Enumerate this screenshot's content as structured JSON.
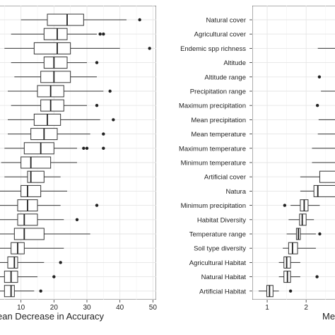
{
  "chart_data": [
    {
      "type": "boxplot",
      "xlabel": "ean Decrease in Accuracy",
      "xticks": [
        10,
        20,
        30,
        40,
        50
      ],
      "xlim": [
        3,
        51
      ],
      "grid": true,
      "y_labels_visible": false,
      "boxes": [
        {
          "lo": 10,
          "q1": 18,
          "med": 24,
          "q3": 29,
          "hi": 42,
          "out": [
            46
          ]
        },
        {
          "lo": 7,
          "q1": 17,
          "med": 21,
          "q3": 24,
          "hi": 33,
          "out": [
            34,
            35
          ]
        },
        {
          "lo": 5,
          "q1": 14,
          "med": 21,
          "q3": 25,
          "hi": 40,
          "out": [
            49
          ]
        },
        {
          "lo": 7,
          "q1": 17,
          "med": 20,
          "q3": 24,
          "hi": 30,
          "out": [
            33
          ]
        },
        {
          "lo": 8,
          "q1": 16,
          "med": 20,
          "q3": 25,
          "hi": 33,
          "out": []
        },
        {
          "lo": 6,
          "q1": 15,
          "med": 19,
          "q3": 23,
          "hi": 35,
          "out": [
            37
          ]
        },
        {
          "lo": 7,
          "q1": 16,
          "med": 19,
          "q3": 23,
          "hi": 30,
          "out": [
            33
          ]
        },
        {
          "lo": 6,
          "q1": 14,
          "med": 18,
          "q3": 22,
          "hi": 34,
          "out": [
            38
          ]
        },
        {
          "lo": 6,
          "q1": 13,
          "med": 17,
          "q3": 21,
          "hi": 31,
          "out": [
            35
          ]
        },
        {
          "lo": 5,
          "q1": 11,
          "med": 16,
          "q3": 20,
          "hi": 27,
          "out": [
            29,
            30,
            35
          ]
        },
        {
          "lo": 4,
          "q1": 10,
          "med": 13,
          "q3": 19,
          "hi": 27,
          "out": []
        },
        {
          "lo": 5,
          "q1": 12,
          "med": 13,
          "q3": 17,
          "hi": 22,
          "out": []
        },
        {
          "lo": 3,
          "q1": 10,
          "med": 12,
          "q3": 16,
          "hi": 24,
          "out": []
        },
        {
          "lo": 3,
          "q1": 9,
          "med": 12,
          "q3": 15,
          "hi": 22,
          "out": [
            33
          ]
        },
        {
          "lo": 3,
          "q1": 9,
          "med": 11,
          "q3": 15,
          "hi": 23,
          "out": [
            27
          ]
        },
        {
          "lo": 3,
          "q1": 8,
          "med": 11,
          "q3": 17,
          "hi": 31,
          "out": []
        },
        {
          "lo": 3,
          "q1": 7,
          "med": 9,
          "q3": 11,
          "hi": 23,
          "out": []
        },
        {
          "lo": 3,
          "q1": 6,
          "med": 8,
          "q3": 9,
          "hi": 17,
          "out": [
            22
          ]
        },
        {
          "lo": 3,
          "q1": 5,
          "med": 7,
          "q3": 9,
          "hi": 15,
          "out": [
            20
          ]
        },
        {
          "lo": 3,
          "q1": 5,
          "med": 7,
          "q3": 8,
          "hi": 14,
          "out": [
            16
          ]
        }
      ]
    },
    {
      "type": "boxplot",
      "xlabel": "Mea",
      "xticks": [
        1,
        2
      ],
      "xlim": [
        0.6,
        2.85
      ],
      "grid": true,
      "categories": [
        "Natural cover",
        "Agricultural cover",
        "Endemic spp richness",
        "Altitude",
        "Altitude range",
        "Precipitation range",
        "Maximum precipitation",
        "Mean precipitation",
        "Mean temperature",
        "Maximum temperature",
        "Minimum temperature",
        "Artificial cover",
        "Natura",
        "Minimum precipitation",
        "Habitat Diversity",
        "Temperature range",
        "Soil type diversity",
        "Agricultural Habitat",
        "Natural Habitat",
        "Artificial Habitat"
      ],
      "boxes": [
        {
          "lo": null,
          "q1": null,
          "med": null,
          "q3": null,
          "hi": null,
          "out": []
        },
        {
          "lo": null,
          "q1": null,
          "med": null,
          "q3": null,
          "hi": null,
          "out": []
        },
        {
          "lo": 2.3,
          "q1": null,
          "med": null,
          "q3": null,
          "hi": null,
          "out": []
        },
        {
          "lo": null,
          "q1": null,
          "med": null,
          "q3": null,
          "hi": null,
          "out": []
        },
        {
          "lo": null,
          "q1": null,
          "med": null,
          "q3": null,
          "hi": null,
          "out": [
            2.34
          ]
        },
        {
          "lo": 2.38,
          "q1": null,
          "med": null,
          "q3": null,
          "hi": null,
          "out": []
        },
        {
          "lo": null,
          "q1": null,
          "med": null,
          "q3": null,
          "hi": null,
          "out": [
            2.29
          ]
        },
        {
          "lo": 2.32,
          "q1": null,
          "med": null,
          "q3": null,
          "hi": null,
          "out": []
        },
        {
          "lo": 2.3,
          "q1": null,
          "med": null,
          "q3": null,
          "hi": null,
          "out": []
        },
        {
          "lo": 2.15,
          "q1": null,
          "med": null,
          "q3": null,
          "hi": null,
          "out": []
        },
        {
          "lo": 2.15,
          "q1": null,
          "med": null,
          "q3": null,
          "hi": null,
          "out": []
        },
        {
          "lo": 1.85,
          "q1": 2.35,
          "med": null,
          "q3": null,
          "hi": null,
          "out": []
        },
        {
          "lo": 1.85,
          "q1": 2.2,
          "med": 2.3,
          "q3": null,
          "hi": null,
          "out": []
        },
        {
          "lo": 1.6,
          "q1": 1.85,
          "med": 1.95,
          "q3": 2.05,
          "hi": 2.35,
          "out": [
            1.45
          ]
        },
        {
          "lo": 1.55,
          "q1": 1.83,
          "med": 1.9,
          "q3": 2.0,
          "hi": 2.2,
          "out": []
        },
        {
          "lo": 1.5,
          "q1": 1.75,
          "med": 1.8,
          "q3": 1.85,
          "hi": 2.25,
          "out": [
            2.35
          ]
        },
        {
          "lo": 1.4,
          "q1": 1.55,
          "med": 1.65,
          "q3": 1.78,
          "hi": 2.25,
          "out": []
        },
        {
          "lo": 1.3,
          "q1": 1.43,
          "med": 1.5,
          "q3": 1.6,
          "hi": 1.85,
          "out": []
        },
        {
          "lo": 1.3,
          "q1": 1.43,
          "med": 1.52,
          "q3": 1.6,
          "hi": 1.85,
          "out": [
            2.28
          ]
        },
        {
          "lo": 0.78,
          "q1": 0.99,
          "med": 1.06,
          "q3": 1.15,
          "hi": 1.3,
          "out": [
            1.6
          ]
        }
      ]
    }
  ]
}
